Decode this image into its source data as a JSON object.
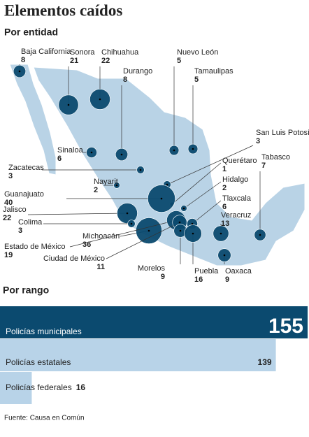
{
  "title": "Elementos caídos",
  "map": {
    "subtitle": "Por entidad",
    "color": "#0b4a6f",
    "states": [
      {
        "name": "Baja California",
        "value": 8
      },
      {
        "name": "Sonora",
        "value": 21
      },
      {
        "name": "Chihuahua",
        "value": 22
      },
      {
        "name": "Durango",
        "value": 8
      },
      {
        "name": "Nuevo León",
        "value": 5
      },
      {
        "name": "Tamaulipas",
        "value": 5
      },
      {
        "name": "San Luis Potosí",
        "value": 3
      },
      {
        "name": "Sinaloa",
        "value": 6
      },
      {
        "name": "Zacatecas",
        "value": 3
      },
      {
        "name": "Nayarit",
        "value": 2
      },
      {
        "name": "Querétaro",
        "value": 1
      },
      {
        "name": "Tabasco",
        "value": 7
      },
      {
        "name": "Hidalgo",
        "value": 2
      },
      {
        "name": "Guanajuato",
        "value": 40
      },
      {
        "name": "Tlaxcala",
        "value": 6
      },
      {
        "name": "Jalisco",
        "value": 22
      },
      {
        "name": "Veracruz",
        "value": 13
      },
      {
        "name": "Colima",
        "value": 3
      },
      {
        "name": "Michoacán",
        "value": 36
      },
      {
        "name": "Estado de México",
        "value": 19
      },
      {
        "name": "Ciudad de México",
        "value": 11
      },
      {
        "name": "Morelos",
        "value": 9
      },
      {
        "name": "Puebla",
        "value": 16
      },
      {
        "name": "Oaxaca",
        "value": 9
      }
    ]
  },
  "chart_data": {
    "type": "bar",
    "orientation": "horizontal",
    "title": "Por rango",
    "categories": [
      "Policías municipales",
      "Policías estatales",
      "Policías federales"
    ],
    "values": [
      155,
      139,
      16
    ],
    "colors": [
      "#0b4a6f",
      "#b8d3e8",
      "#b8d3e8"
    ],
    "xlim": [
      0,
      155
    ]
  },
  "source": "Fuente: Causa en Común"
}
